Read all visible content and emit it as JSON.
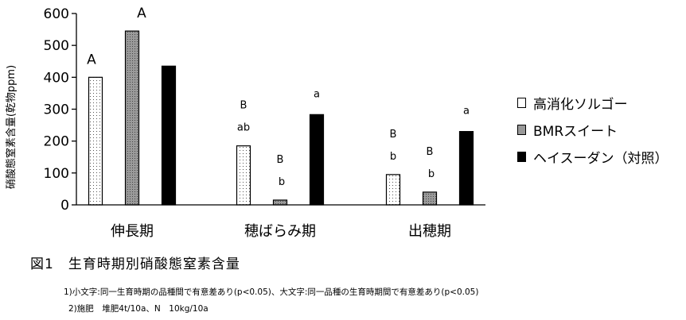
{
  "chart_data": {
    "type": "bar",
    "ylabel": "硝酸態窒素含量(乾物ppm)",
    "ylim": [
      0,
      600
    ],
    "yticks": [
      0,
      100,
      200,
      300,
      400,
      500,
      600
    ],
    "categories": [
      "伸長期",
      "穂ばらみ期",
      "出穂期"
    ],
    "series": [
      {
        "name": "高消化ソルゴー",
        "values": [
          400,
          185,
          95
        ],
        "color": "#ffffff",
        "pattern": "dots"
      },
      {
        "name": "BMRスイート",
        "values": [
          545,
          15,
          40
        ],
        "color": "#999999",
        "pattern": "grey-dots"
      },
      {
        "name": "ヘイスーダン（対照）",
        "values": [
          435,
          283,
          230
        ],
        "color": "#000000",
        "pattern": "solid"
      }
    ],
    "annotations": [
      {
        "category": 0,
        "series": 0,
        "upper": "A",
        "lower": ""
      },
      {
        "category": 0,
        "series": 1,
        "upper": "A",
        "lower": ""
      },
      {
        "category": 1,
        "series": 0,
        "upper": "B",
        "lower": "ab"
      },
      {
        "category": 1,
        "series": 1,
        "upper": "B",
        "lower": "b"
      },
      {
        "category": 1,
        "series": 2,
        "upper": "",
        "lower": "a"
      },
      {
        "category": 2,
        "series": 0,
        "upper": "B",
        "lower": "b"
      },
      {
        "category": 2,
        "series": 1,
        "upper": "B",
        "lower": "b"
      },
      {
        "category": 2,
        "series": 2,
        "upper": "",
        "lower": "a"
      }
    ],
    "legend_position": "right",
    "grid": false
  },
  "caption": "図1　生育時期別硝酸態窒素含量",
  "notes": [
    "1)小文字:同一生育時期の品種間で有意差あり(p<0.05)、大文字:同一品種の生育時期間で有意差あり(p<0.05)",
    "2)施肥　堆肥4t/10a、N　10kg/10a"
  ]
}
